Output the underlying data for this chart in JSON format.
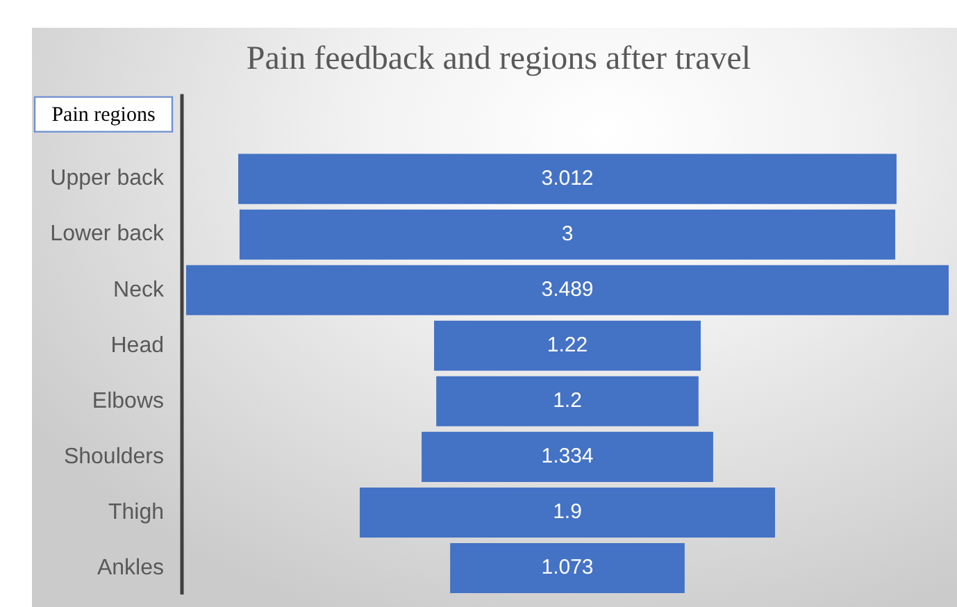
{
  "chart_data": {
    "type": "other",
    "title": "Pain feedback and regions after travel",
    "ylabel": "Pain regions",
    "categories": [
      "Upper back",
      "Lower back",
      "Neck",
      "Head",
      "Elbows",
      "Shoulders",
      "Thigh",
      "Ankles"
    ],
    "values": [
      3.012,
      3,
      3.489,
      1.22,
      1.2,
      1.334,
      1.9,
      1.073
    ],
    "color": "#4472c4",
    "data_labels": true
  }
}
